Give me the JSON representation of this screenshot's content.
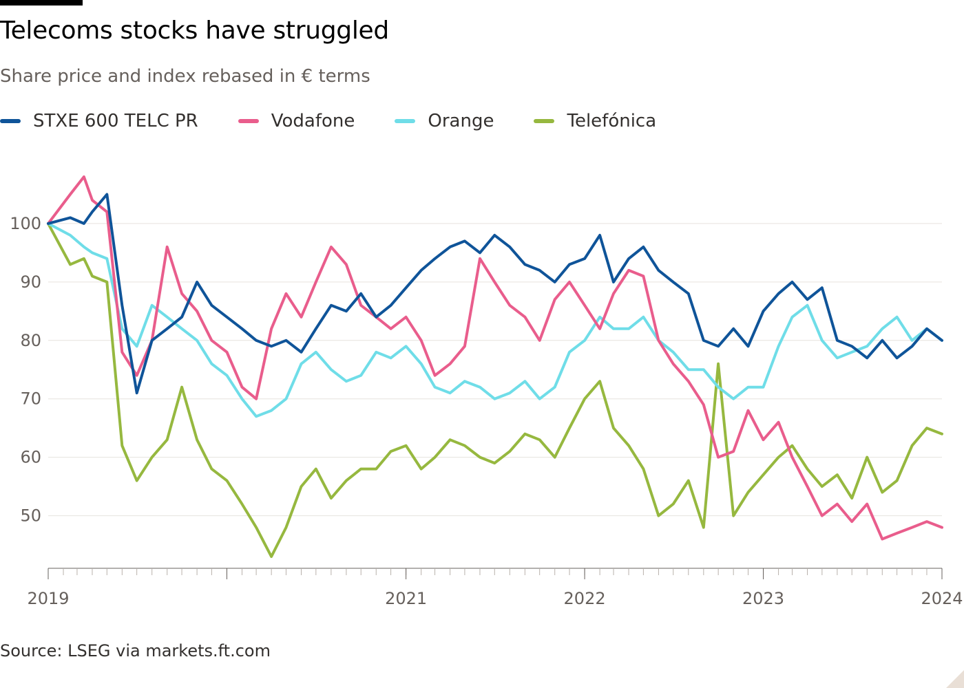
{
  "header": {
    "title": "Telecoms stocks have struggled",
    "subtitle": "Share price and index rebased in € terms"
  },
  "legend": [
    {
      "label": "STXE 600 TELC PR",
      "color": "#0f5499"
    },
    {
      "label": "Vodafone",
      "color": "#e95d8c"
    },
    {
      "label": "Orange",
      "color": "#6fdde8"
    },
    {
      "label": "Telefónica",
      "color": "#96b83f"
    }
  ],
  "footer": {
    "source": "Source: LSEG via markets.ft.com"
  },
  "chart_data": {
    "type": "line",
    "title": "Telecoms stocks have struggled",
    "subtitle": "Share price and index rebased in € terms",
    "xlabel": "",
    "ylabel": "",
    "ylim": [
      41,
      110
    ],
    "yticks": [
      50,
      60,
      70,
      80,
      90,
      100
    ],
    "grid": true,
    "legend_position": "top-left",
    "xlim": [
      "2019-01-01",
      "2024-01-01"
    ],
    "xticks": [
      {
        "x": "2019-01-01",
        "label": "2019"
      },
      {
        "x": "2020-01-01",
        "label": ""
      },
      {
        "x": "2021-01-01",
        "label": "2021"
      },
      {
        "x": "2022-01-01",
        "label": "2022"
      },
      {
        "x": "2023-01-01",
        "label": "2023"
      },
      {
        "x": "2024-01-01",
        "label": "2024"
      }
    ],
    "x": [
      "2019-01-01",
      "2019-02-15",
      "2019-03-15",
      "2019-04-01",
      "2019-05-01",
      "2019-06-01",
      "2019-07-01",
      "2019-08-01",
      "2019-09-01",
      "2019-10-01",
      "2019-11-01",
      "2019-12-01",
      "2020-01-01",
      "2020-02-01",
      "2020-03-01",
      "2020-04-01",
      "2020-05-01",
      "2020-06-01",
      "2020-07-01",
      "2020-08-01",
      "2020-09-01",
      "2020-10-01",
      "2020-11-01",
      "2020-12-01",
      "2021-01-01",
      "2021-02-01",
      "2021-03-01",
      "2021-04-01",
      "2021-05-01",
      "2021-06-01",
      "2021-07-01",
      "2021-08-01",
      "2021-09-01",
      "2021-10-01",
      "2021-11-01",
      "2021-12-01",
      "2022-01-01",
      "2022-02-01",
      "2022-03-01",
      "2022-04-01",
      "2022-05-01",
      "2022-06-01",
      "2022-07-01",
      "2022-08-01",
      "2022-09-01",
      "2022-10-01",
      "2022-11-01",
      "2022-12-01",
      "2023-01-01",
      "2023-02-01",
      "2023-03-01",
      "2023-04-01",
      "2023-05-01",
      "2023-06-01",
      "2023-07-01",
      "2023-08-01",
      "2023-09-01",
      "2023-10-01",
      "2023-11-01",
      "2023-12-01",
      "2024-01-01"
    ],
    "series": [
      {
        "name": "STXE 600 TELC PR",
        "color": "#0f5499",
        "values": [
          100,
          101,
          100,
          102,
          105,
          86,
          71,
          80,
          82,
          84,
          90,
          86,
          84,
          82,
          80,
          79,
          80,
          78,
          82,
          86,
          85,
          88,
          84,
          86,
          89,
          92,
          94,
          96,
          97,
          95,
          98,
          96,
          93,
          92,
          90,
          93,
          94,
          98,
          90,
          94,
          96,
          92,
          90,
          88,
          80,
          79,
          82,
          79,
          85,
          88,
          90,
          87,
          89,
          80,
          79,
          77,
          80,
          77,
          79,
          82,
          80
        ]
      },
      {
        "name": "Vodafone",
        "color": "#e95d8c",
        "values": [
          100,
          105,
          108,
          104,
          102,
          78,
          74,
          80,
          96,
          88,
          85,
          80,
          78,
          72,
          70,
          82,
          88,
          84,
          90,
          96,
          93,
          86,
          84,
          82,
          84,
          80,
          74,
          76,
          79,
          94,
          90,
          86,
          84,
          80,
          87,
          90,
          86,
          82,
          88,
          92,
          91,
          80,
          76,
          73,
          69,
          60,
          61,
          68,
          63,
          66,
          60,
          55,
          50,
          52,
          49,
          52,
          46,
          47,
          48,
          49,
          48
        ]
      },
      {
        "name": "Orange",
        "color": "#6fdde8",
        "values": [
          100,
          98,
          96,
          95,
          94,
          82,
          79,
          86,
          84,
          82,
          80,
          76,
          74,
          70,
          67,
          68,
          70,
          76,
          78,
          75,
          73,
          74,
          78,
          77,
          79,
          76,
          72,
          71,
          73,
          72,
          70,
          71,
          73,
          70,
          72,
          78,
          80,
          84,
          82,
          82,
          84,
          80,
          78,
          75,
          75,
          72,
          70,
          72,
          72,
          79,
          84,
          86,
          80,
          77,
          78,
          79,
          82,
          84,
          80,
          82,
          80
        ]
      },
      {
        "name": "Telefónica",
        "color": "#96b83f",
        "values": [
          100,
          93,
          94,
          91,
          90,
          62,
          56,
          60,
          63,
          72,
          63,
          58,
          56,
          52,
          48,
          43,
          48,
          55,
          58,
          53,
          56,
          58,
          58,
          61,
          62,
          58,
          60,
          63,
          62,
          60,
          59,
          61,
          64,
          63,
          60,
          65,
          70,
          73,
          65,
          62,
          58,
          50,
          52,
          56,
          48,
          76,
          50,
          54,
          57,
          60,
          62,
          58,
          55,
          57,
          53,
          60,
          54,
          56,
          62,
          65,
          64
        ]
      }
    ]
  }
}
